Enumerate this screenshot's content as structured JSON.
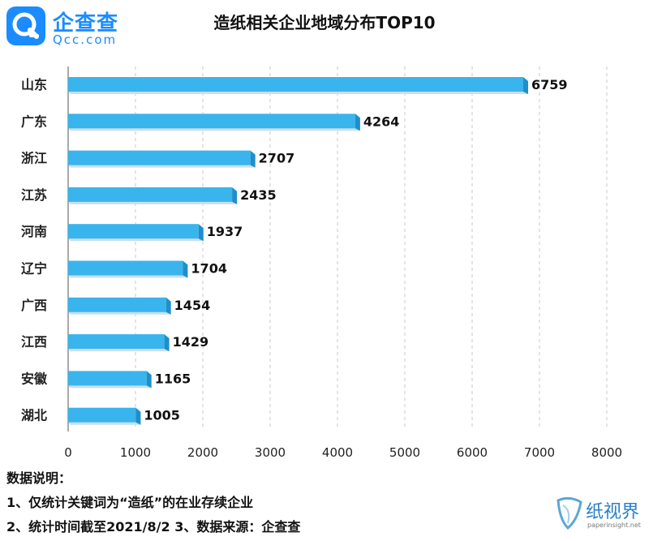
{
  "logo": {
    "name": "企查查",
    "domain": "Qcc.com",
    "icon": "magnifier-q-icon"
  },
  "chart_data": {
    "type": "bar",
    "orientation": "horizontal",
    "title": "造纸相关企业地域分布TOP10",
    "categories": [
      "山东",
      "广东",
      "浙江",
      "江苏",
      "河南",
      "辽宁",
      "广西",
      "江西",
      "安徽",
      "湖北"
    ],
    "values": [
      6759,
      4264,
      2707,
      2435,
      1937,
      1704,
      1454,
      1429,
      1165,
      1005
    ],
    "xlim": [
      0,
      8000
    ],
    "xticks": [
      0,
      1000,
      2000,
      3000,
      4000,
      5000,
      6000,
      7000,
      8000
    ],
    "grid": "vertical dashed",
    "legend": "none",
    "bar_color": "#3ab4ec",
    "bar_shade_color": "#1f8fcb"
  },
  "notes": {
    "heading": "数据说明：",
    "line1": "1、仅统计关键词为“造纸”的在业存续企业",
    "line2": "2、统计时间截至2021/8/2  3、数据来源：企查查"
  },
  "watermark": {
    "text": "纸视界",
    "url": "paperinsight.net",
    "icon": "paper-leaf-icon"
  }
}
